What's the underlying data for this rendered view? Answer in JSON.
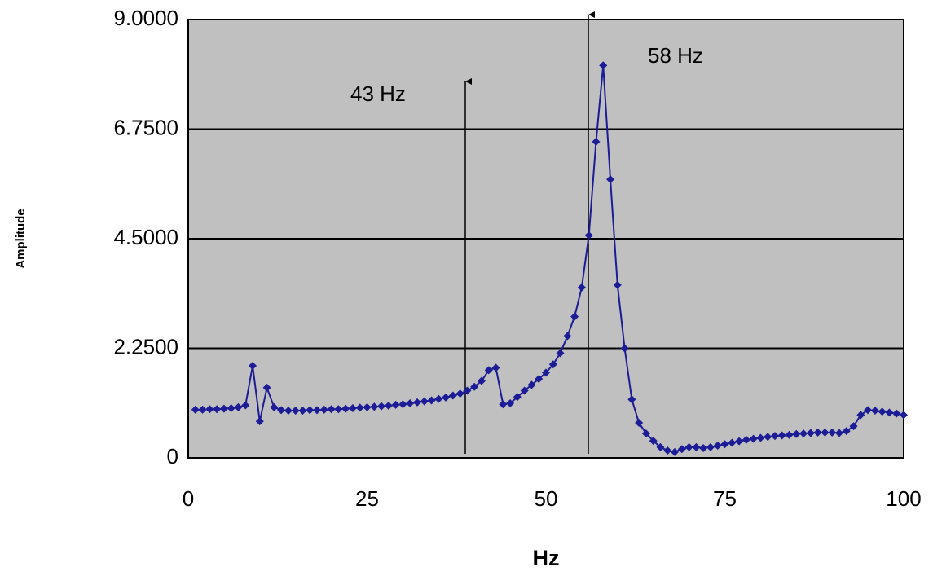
{
  "chart_data": {
    "type": "line",
    "x_label": "Hz",
    "y_label": "Amplitude",
    "annotations": [
      "43 Hz",
      "58 Hz"
    ],
    "x": [
      1,
      2,
      3,
      4,
      5,
      6,
      7,
      8,
      9,
      10,
      11,
      12,
      13,
      14,
      15,
      16,
      17,
      18,
      19,
      20,
      21,
      22,
      23,
      24,
      25,
      26,
      27,
      28,
      29,
      30,
      31,
      32,
      33,
      34,
      35,
      36,
      37,
      38,
      39,
      40,
      41,
      42,
      43,
      44,
      45,
      46,
      47,
      48,
      49,
      50,
      51,
      52,
      53,
      54,
      55,
      56,
      57,
      58,
      59,
      60,
      61,
      62,
      63,
      64,
      65,
      66,
      67,
      68,
      69,
      70,
      71,
      72,
      73,
      74,
      75,
      76,
      77,
      78,
      79,
      80,
      81,
      82,
      83,
      84,
      85,
      86,
      87,
      88,
      89,
      90,
      91,
      92,
      93,
      94,
      95,
      96,
      97,
      98,
      99,
      100
    ],
    "series": [
      {
        "name": "Amplitude",
        "color": "#1c1c96",
        "values": [
          0.99,
          0.99,
          1.0,
          1.0,
          1.01,
          1.02,
          1.04,
          1.08,
          1.89,
          0.75,
          1.44,
          1.04,
          0.98,
          0.97,
          0.97,
          0.97,
          0.98,
          0.98,
          0.99,
          1.0,
          1.0,
          1.01,
          1.02,
          1.03,
          1.04,
          1.05,
          1.06,
          1.07,
          1.09,
          1.1,
          1.12,
          1.14,
          1.16,
          1.18,
          1.21,
          1.24,
          1.28,
          1.32,
          1.38,
          1.46,
          1.58,
          1.8,
          1.85,
          1.1,
          1.12,
          1.25,
          1.38,
          1.5,
          1.62,
          1.75,
          1.92,
          2.15,
          2.5,
          2.9,
          3.5,
          4.57,
          6.49,
          8.06,
          5.72,
          3.55,
          2.25,
          1.2,
          0.72,
          0.5,
          0.35,
          0.22,
          0.15,
          0.12,
          0.18,
          0.22,
          0.22,
          0.2,
          0.22,
          0.25,
          0.28,
          0.31,
          0.34,
          0.37,
          0.39,
          0.41,
          0.43,
          0.45,
          0.46,
          0.47,
          0.49,
          0.5,
          0.51,
          0.52,
          0.52,
          0.52,
          0.51,
          0.55,
          0.65,
          0.88,
          0.98,
          0.97,
          0.95,
          0.93,
          0.91,
          0.88
        ]
      }
    ],
    "xlim": [
      0,
      100
    ],
    "xticks": [
      0,
      25,
      50,
      75,
      100
    ],
    "ylim": [
      0,
      9
    ],
    "yticks": [
      0,
      {
        "value": 2.25,
        "label": "2.2500"
      },
      {
        "value": 4.5,
        "label": "4.5000"
      },
      {
        "value": 6.75,
        "label": "6.7500"
      },
      {
        "value": 9,
        "label": "9.0000"
      }
    ],
    "grid": true,
    "plot_background": "#c0c0c0"
  }
}
